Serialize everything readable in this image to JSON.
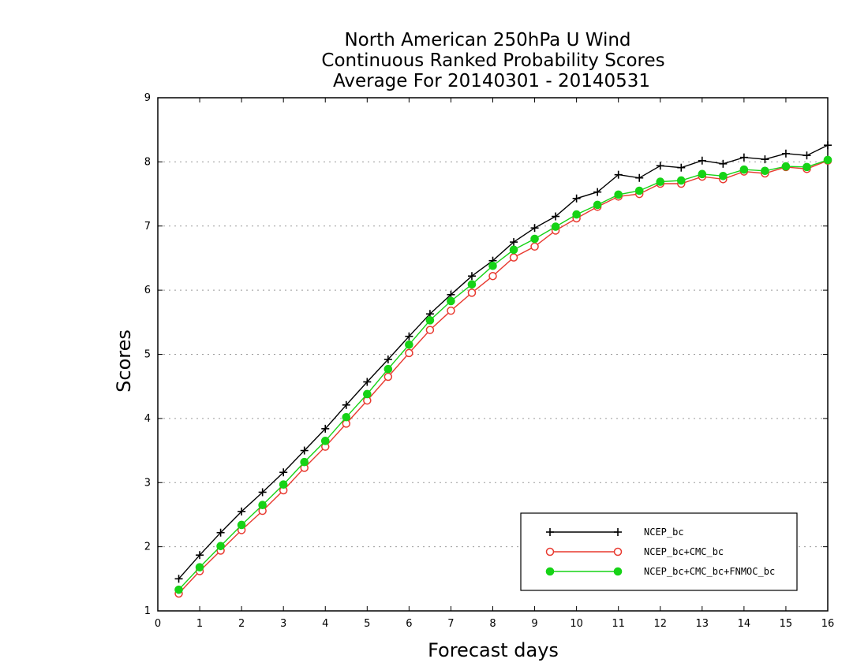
{
  "chart_data": {
    "type": "line",
    "title_lines": [
      "North American 250hPa U Wind",
      "Continuous Ranked Probability Scores",
      "Average For 20140301 - 20140531"
    ],
    "xlabel": "Forecast days",
    "ylabel": "Scores",
    "xlim": [
      0,
      16
    ],
    "ylim": [
      1,
      9
    ],
    "xticks": [
      "0",
      "1",
      "2",
      "3",
      "4",
      "5",
      "6",
      "7",
      "8",
      "9",
      "10",
      "11",
      "12",
      "13",
      "14",
      "15",
      "16"
    ],
    "yticks": [
      "1",
      "2",
      "3",
      "4",
      "5",
      "6",
      "7",
      "8",
      "9"
    ],
    "grid": "horizontal dotted",
    "legend_position": "bottom-right",
    "x": [
      0.5,
      1,
      1.5,
      2,
      2.5,
      3,
      3.5,
      4,
      4.5,
      5,
      5.5,
      6,
      6.5,
      7,
      7.5,
      8,
      8.5,
      9,
      9.5,
      10,
      10.5,
      11,
      11.5,
      12,
      12.5,
      13,
      13.5,
      14,
      14.5,
      15,
      15.5,
      16
    ],
    "series": [
      {
        "name": "NCEP_bc",
        "color": "#000000",
        "marker": "plus",
        "values": [
          1.5,
          1.87,
          2.22,
          2.55,
          2.85,
          3.16,
          3.5,
          3.84,
          4.21,
          4.57,
          4.92,
          5.28,
          5.63,
          5.93,
          6.22,
          6.46,
          6.75,
          6.97,
          7.15,
          7.43,
          7.53,
          7.8,
          7.75,
          7.94,
          7.91,
          8.02,
          7.97,
          8.07,
          8.04,
          8.13,
          8.1,
          8.26
        ]
      },
      {
        "name": "NCEP_bc+CMC_bc",
        "color": "#e8392f",
        "marker": "open-circle",
        "values": [
          1.27,
          1.62,
          1.94,
          2.26,
          2.56,
          2.88,
          3.23,
          3.56,
          3.92,
          4.28,
          4.65,
          5.02,
          5.38,
          5.68,
          5.96,
          6.22,
          6.51,
          6.68,
          6.93,
          7.12,
          7.3,
          7.46,
          7.5,
          7.66,
          7.66,
          7.77,
          7.73,
          7.85,
          7.82,
          7.92,
          7.89,
          8.02
        ]
      },
      {
        "name": "NCEP_bc+CMC_bc+FNMOC_bc",
        "color": "#16d316",
        "marker": "filled-circle",
        "values": [
          1.33,
          1.68,
          2.01,
          2.34,
          2.65,
          2.97,
          3.32,
          3.65,
          4.02,
          4.38,
          4.77,
          5.15,
          5.53,
          5.83,
          6.09,
          6.38,
          6.63,
          6.8,
          6.99,
          7.18,
          7.33,
          7.49,
          7.55,
          7.69,
          7.71,
          7.81,
          7.78,
          7.88,
          7.86,
          7.93,
          7.92,
          8.03
        ]
      }
    ]
  }
}
